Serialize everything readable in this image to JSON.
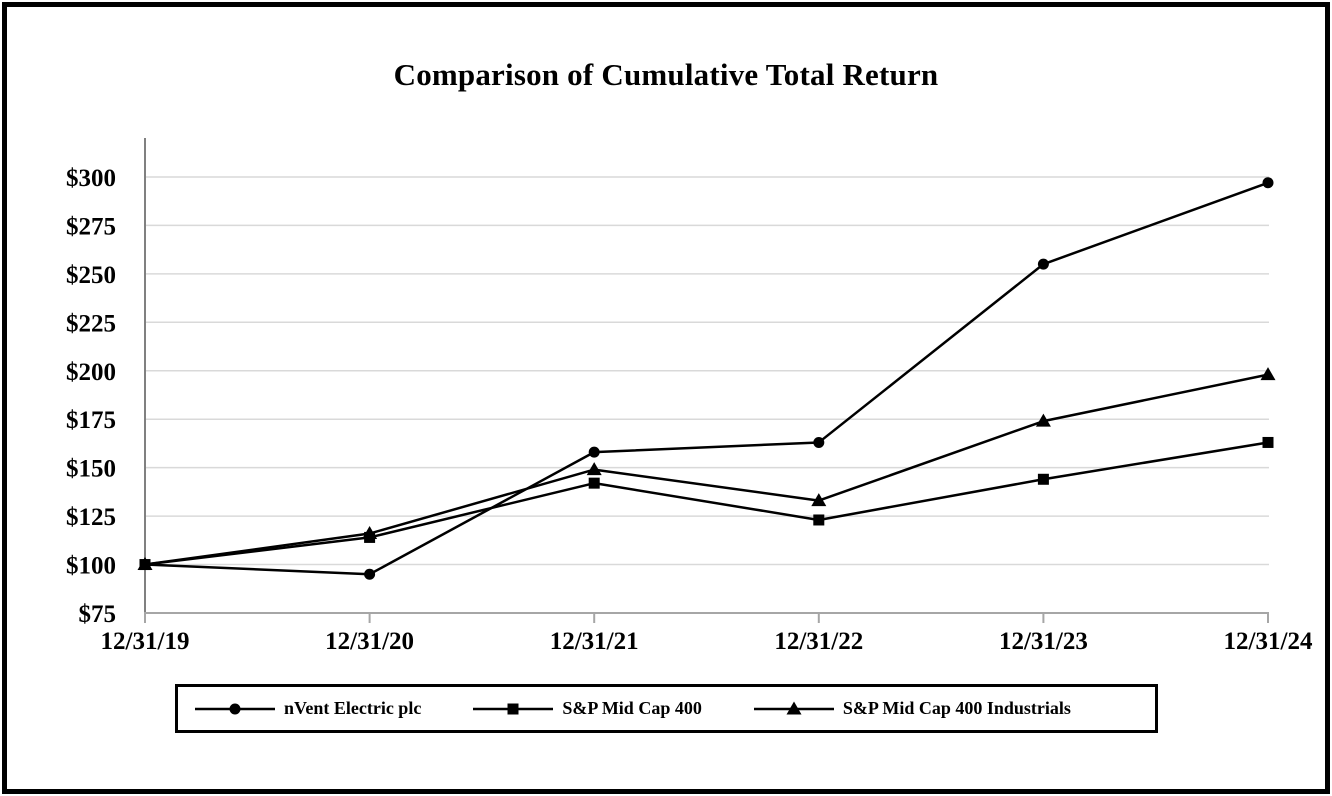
{
  "page": {
    "title": "Comparison of Cumulative Total Return"
  },
  "chart_data": {
    "type": "line",
    "title": "Comparison of Cumulative Total Return",
    "x_labels": [
      "12/31/19",
      "12/31/20",
      "12/31/21",
      "12/31/22",
      "12/31/23",
      "12/31/24"
    ],
    "y_tick_values": [
      300,
      275,
      250,
      225,
      200,
      175,
      150,
      125,
      100,
      75
    ],
    "y_tick_labels": [
      "$300",
      "$275",
      "$250",
      "$225",
      "$200",
      "$175",
      "$150",
      "$125",
      "$100",
      "$75"
    ],
    "ylim": [
      75,
      300
    ],
    "y_step": 25,
    "grid": "horizontal",
    "legend_position": "bottom-boxed",
    "series": [
      {
        "name": "nVent Electric plc",
        "marker": "circle",
        "color": "#000000",
        "values": [
          100,
          95,
          158,
          163,
          255,
          297
        ]
      },
      {
        "name": "S&P Mid Cap 400",
        "marker": "square",
        "color": "#000000",
        "values": [
          100,
          114,
          142,
          123,
          144,
          163
        ]
      },
      {
        "name": "S&P Mid Cap 400 Industrials",
        "marker": "triangle",
        "color": "#000000",
        "values": [
          100,
          116,
          149,
          133,
          174,
          198
        ]
      }
    ],
    "colors": {
      "background": "#ffffff",
      "page_border": "#000000",
      "gridline": "#d9d9d9",
      "y_axis": "#808080",
      "x_axis": "#a6a6a6",
      "series_line": "#000000",
      "text": "#000000"
    }
  }
}
